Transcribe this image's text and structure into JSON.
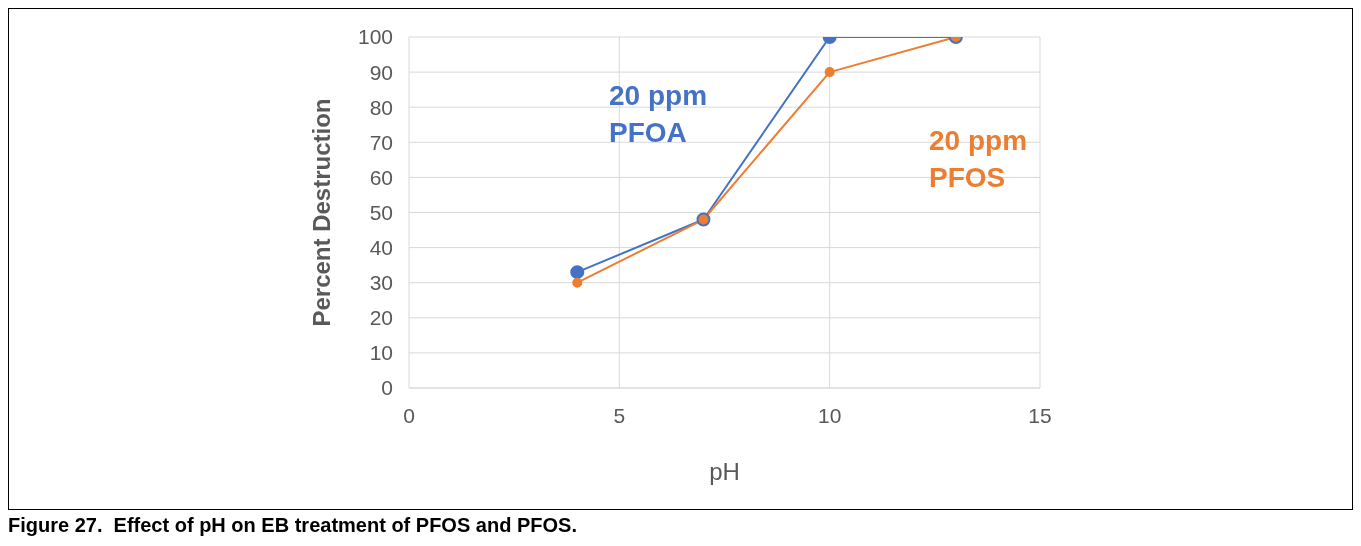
{
  "chart_data": {
    "type": "line",
    "xlabel": "pH",
    "ylabel": "Percent Destruction",
    "x": [
      4,
      7,
      10,
      13
    ],
    "series": [
      {
        "name": "20 ppm PFOA",
        "color": "#4472c4",
        "values": [
          33,
          48,
          100,
          100
        ]
      },
      {
        "name": "20 ppm PFOS",
        "color": "#ed7d31",
        "values": [
          30,
          48,
          90,
          100
        ]
      }
    ],
    "xlim": [
      0,
      15
    ],
    "xticks": [
      0,
      5,
      10,
      15
    ],
    "ylim": [
      0,
      100
    ],
    "yticks": [
      0,
      10,
      20,
      30,
      40,
      50,
      60,
      70,
      80,
      90,
      100
    ],
    "grid": true,
    "marker": "circle",
    "line_style": "solid",
    "annotations": [
      "Figure 27.  Effect of pH on EB treatment of PFOS and PFOS."
    ]
  }
}
